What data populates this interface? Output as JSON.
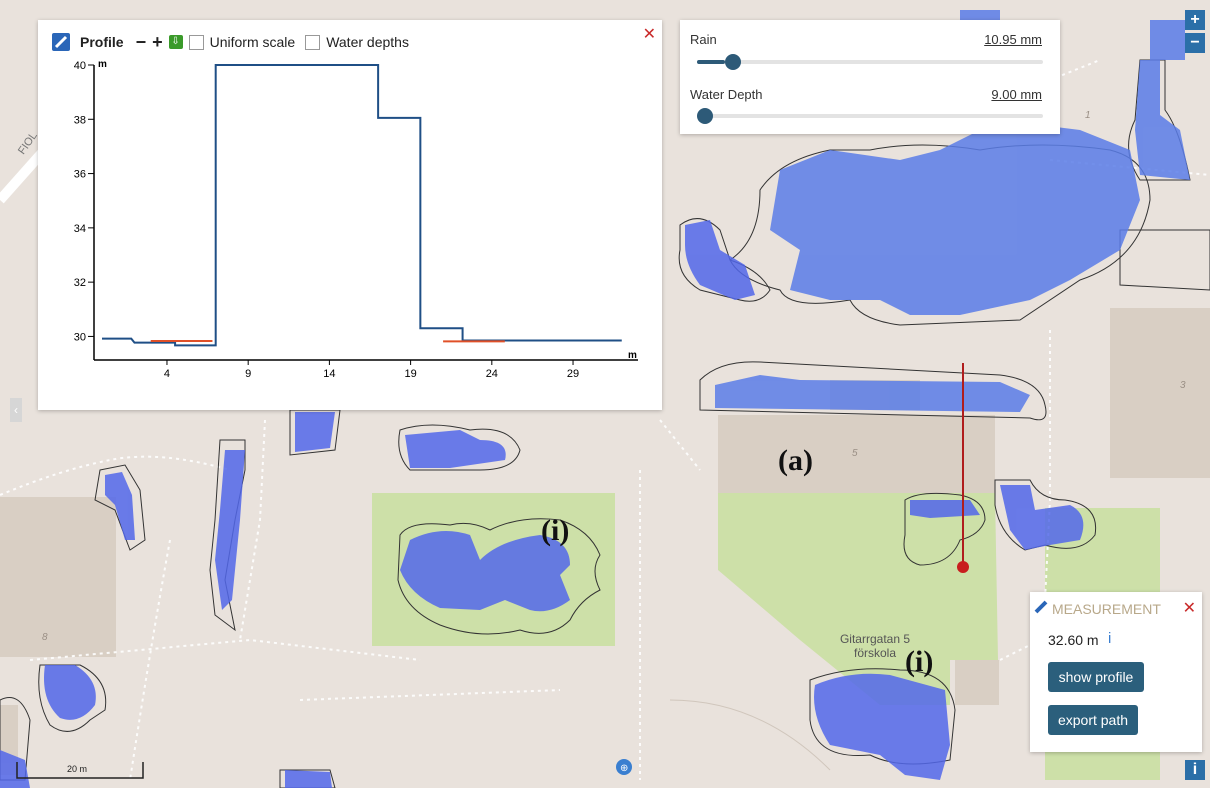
{
  "profile": {
    "title": "Profile",
    "minus": "−",
    "plus": "+",
    "uniform_label": "Uniform scale",
    "water_label": "Water depths",
    "close": "✕",
    "y_unit": "m",
    "x_unit": "m",
    "chart_data": {
      "type": "line",
      "x_ticks": [
        "4",
        "9",
        "14",
        "19",
        "24",
        "29"
      ],
      "y_ticks": [
        "30",
        "32",
        "34",
        "36",
        "38",
        "40"
      ],
      "ylim": [
        29.5,
        40
      ],
      "xlim": [
        0,
        33
      ],
      "series": [
        {
          "color": "#1f4f86",
          "values": [
            [
              0,
              29.92
            ],
            [
              1.8,
              29.92
            ],
            [
              2,
              29.77
            ],
            [
              4.5,
              29.77
            ],
            [
              4.5,
              29.67
            ],
            [
              7,
              29.67
            ],
            [
              7,
              40
            ],
            [
              17,
              40
            ],
            [
              17,
              38.05
            ],
            [
              19.6,
              38.05
            ],
            [
              19.6,
              30.3
            ],
            [
              22.2,
              30.3
            ],
            [
              22.2,
              29.85
            ],
            [
              32,
              29.85
            ]
          ]
        },
        {
          "color": "#e05028",
          "values": [
            [
              3,
              29.83
            ],
            [
              6.8,
              29.83
            ]
          ]
        },
        {
          "color": "#e05028",
          "values": [
            [
              21,
              29.82
            ],
            [
              24.8,
              29.82
            ]
          ]
        }
      ]
    }
  },
  "sliders": {
    "rain_label": "Rain",
    "rain_value": "10.95 mm",
    "rain_fraction": 0.08,
    "depth_label": "Water Depth",
    "depth_value": "9.00 mm",
    "depth_fraction": 0.0
  },
  "measurement": {
    "title": "MEASUREMENT",
    "close": "✕",
    "distance": "32.60 m",
    "info": "i",
    "show_profile": "show profile",
    "export_path": "export path"
  },
  "map": {
    "label_a": "(a)",
    "label_i1": "(i)",
    "label_i2": "(i)",
    "place_name_1": "Gitarrgatan 5",
    "place_name_2": "förskola",
    "scale_label": "20 m",
    "house_nums": [
      "5",
      "3",
      "8",
      "1"
    ],
    "street_fragment": "FIOL"
  },
  "controls": {
    "zoom_in": "+",
    "zoom_out": "−",
    "info_btn": "i",
    "left_toggle": "‹"
  }
}
